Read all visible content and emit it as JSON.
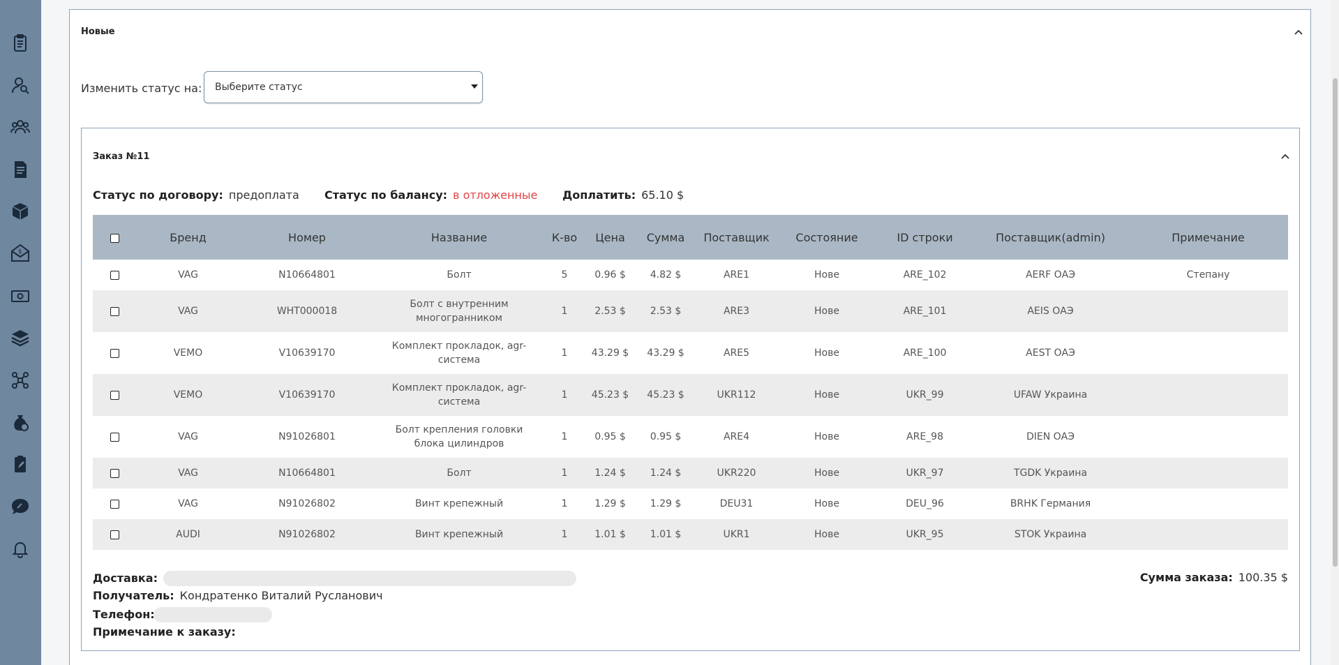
{
  "sidebar": {
    "icons": [
      "clipboard-icon",
      "user-search-icon",
      "users-icon",
      "document-icon",
      "box-icon",
      "money-mail-icon",
      "banknote-icon",
      "layers-icon",
      "network-icon",
      "money-bag-icon",
      "clipboard-edit-icon",
      "chat-icon",
      "bell-icon"
    ]
  },
  "section": {
    "title": "Новые"
  },
  "status_change": {
    "label": "Изменить статус на:",
    "select_value": "Выберите статус"
  },
  "order": {
    "title": "Заказ №11",
    "contract_status_label": "Статус по договору:",
    "contract_status_value": "предоплата",
    "balance_status_label": "Статус по балансу:",
    "balance_status_value": "в отложенные",
    "topay_label": "Доплатить:",
    "topay_value": "65.10 $",
    "colors": {
      "balance_status": "#e24444",
      "header_bg": "#aab8c5",
      "sidebar_bg": "#6f879f"
    },
    "columns": [
      "Бренд",
      "Номер",
      "Название",
      "К-во",
      "Цена",
      "Сумма",
      "Поставщик",
      "Состояние",
      "ID строки",
      "Поставщик(admin)",
      "Примечание"
    ],
    "rows": [
      {
        "brand": "VAG",
        "number": "N10664801",
        "name": "Болт",
        "qty": "5",
        "price": "0.96 $",
        "sum": "4.82 $",
        "supplier": "ARE1",
        "state": "Нове",
        "row_id": "ARE_102",
        "supplier_admin": "AERF ОАЭ",
        "note": "Степану"
      },
      {
        "brand": "VAG",
        "number": "WHT000018",
        "name": "Болт с внутренним многогранником",
        "qty": "1",
        "price": "2.53 $",
        "sum": "2.53 $",
        "supplier": "ARE3",
        "state": "Нове",
        "row_id": "ARE_101",
        "supplier_admin": "AEIS ОАЭ",
        "note": ""
      },
      {
        "brand": "VEMO",
        "number": "V10639170",
        "name": "Комплект прокладок, agr-система",
        "qty": "1",
        "price": "43.29 $",
        "sum": "43.29 $",
        "supplier": "ARE5",
        "state": "Нове",
        "row_id": "ARE_100",
        "supplier_admin": "AEST ОАЭ",
        "note": ""
      },
      {
        "brand": "VEMO",
        "number": "V10639170",
        "name": "Комплект прокладок, agr-система",
        "qty": "1",
        "price": "45.23 $",
        "sum": "45.23 $",
        "supplier": "UKR112",
        "state": "Нове",
        "row_id": "UKR_99",
        "supplier_admin": "UFAW Украина",
        "note": ""
      },
      {
        "brand": "VAG",
        "number": "N91026801",
        "name": "Болт крепления головки блока цилиндров",
        "qty": "1",
        "price": "0.95 $",
        "sum": "0.95 $",
        "supplier": "ARE4",
        "state": "Нове",
        "row_id": "ARE_98",
        "supplier_admin": "DIEN ОАЭ",
        "note": ""
      },
      {
        "brand": "VAG",
        "number": "N10664801",
        "name": "Болт",
        "qty": "1",
        "price": "1.24 $",
        "sum": "1.24 $",
        "supplier": "UKR220",
        "state": "Нове",
        "row_id": "UKR_97",
        "supplier_admin": "TGDK Украина",
        "note": ""
      },
      {
        "brand": "VAG",
        "number": "N91026802",
        "name": "Винт крепежный",
        "qty": "1",
        "price": "1.29 $",
        "sum": "1.29 $",
        "supplier": "DEU31",
        "state": "Нове",
        "row_id": "DEU_96",
        "supplier_admin": "BRHK Германия",
        "note": ""
      },
      {
        "brand": "AUDI",
        "number": "N91026802",
        "name": "Винт крепежный",
        "qty": "1",
        "price": "1.01 $",
        "sum": "1.01 $",
        "supplier": "UKR1",
        "state": "Нове",
        "row_id": "UKR_95",
        "supplier_admin": "STOK Украина",
        "note": ""
      }
    ],
    "delivery_label": "Доставка:",
    "recipient_label": "Получатель:",
    "recipient_value": "Кондратенко Виталий Русланович",
    "phone_label": "Телефон:",
    "order_note_label": "Примечание к заказу:",
    "total_label": "Сумма заказа:",
    "total_value": "100.35 $"
  }
}
